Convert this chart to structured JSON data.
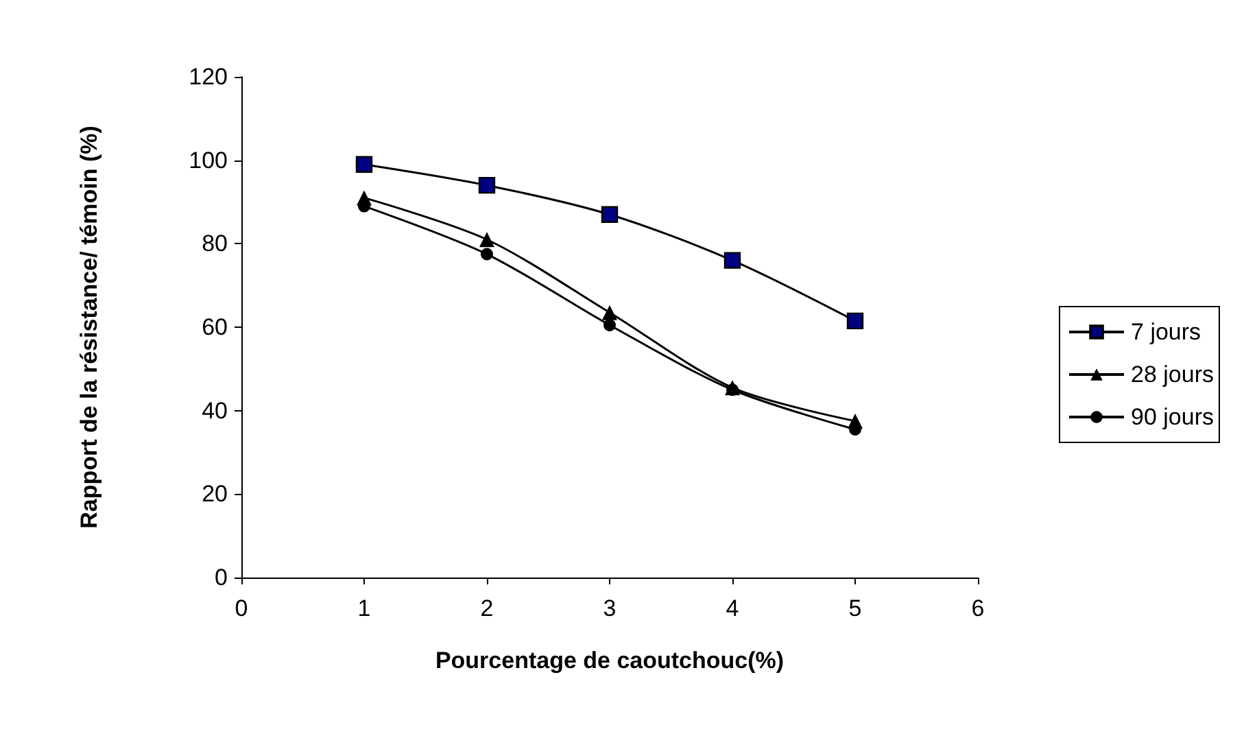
{
  "chart_data": {
    "type": "line",
    "xlabel": "Pourcentage de caoutchouc(%)",
    "ylabel": "Rapport de la résistance/ témoin (%)",
    "x": [
      1,
      2,
      3,
      4,
      5
    ],
    "series": [
      {
        "name": "7 jours",
        "color": "#000080",
        "marker": "square",
        "values": [
          99,
          94,
          87,
          76,
          61.5
        ]
      },
      {
        "name": "28 jours",
        "color": "#000000",
        "marker": "triangle",
        "values": [
          91,
          81,
          63.5,
          45.5,
          37.5
        ]
      },
      {
        "name": "90 jours",
        "color": "#000000",
        "marker": "circle",
        "values": [
          89,
          77.5,
          60.5,
          45,
          35.5
        ]
      }
    ],
    "xlim": [
      0,
      6
    ],
    "xticks": [
      0,
      1,
      2,
      3,
      4,
      5,
      6
    ],
    "ylim": [
      0,
      120
    ],
    "yticks": [
      0,
      20,
      40,
      60,
      80,
      100,
      120
    ],
    "grid": false,
    "legend": "right"
  }
}
